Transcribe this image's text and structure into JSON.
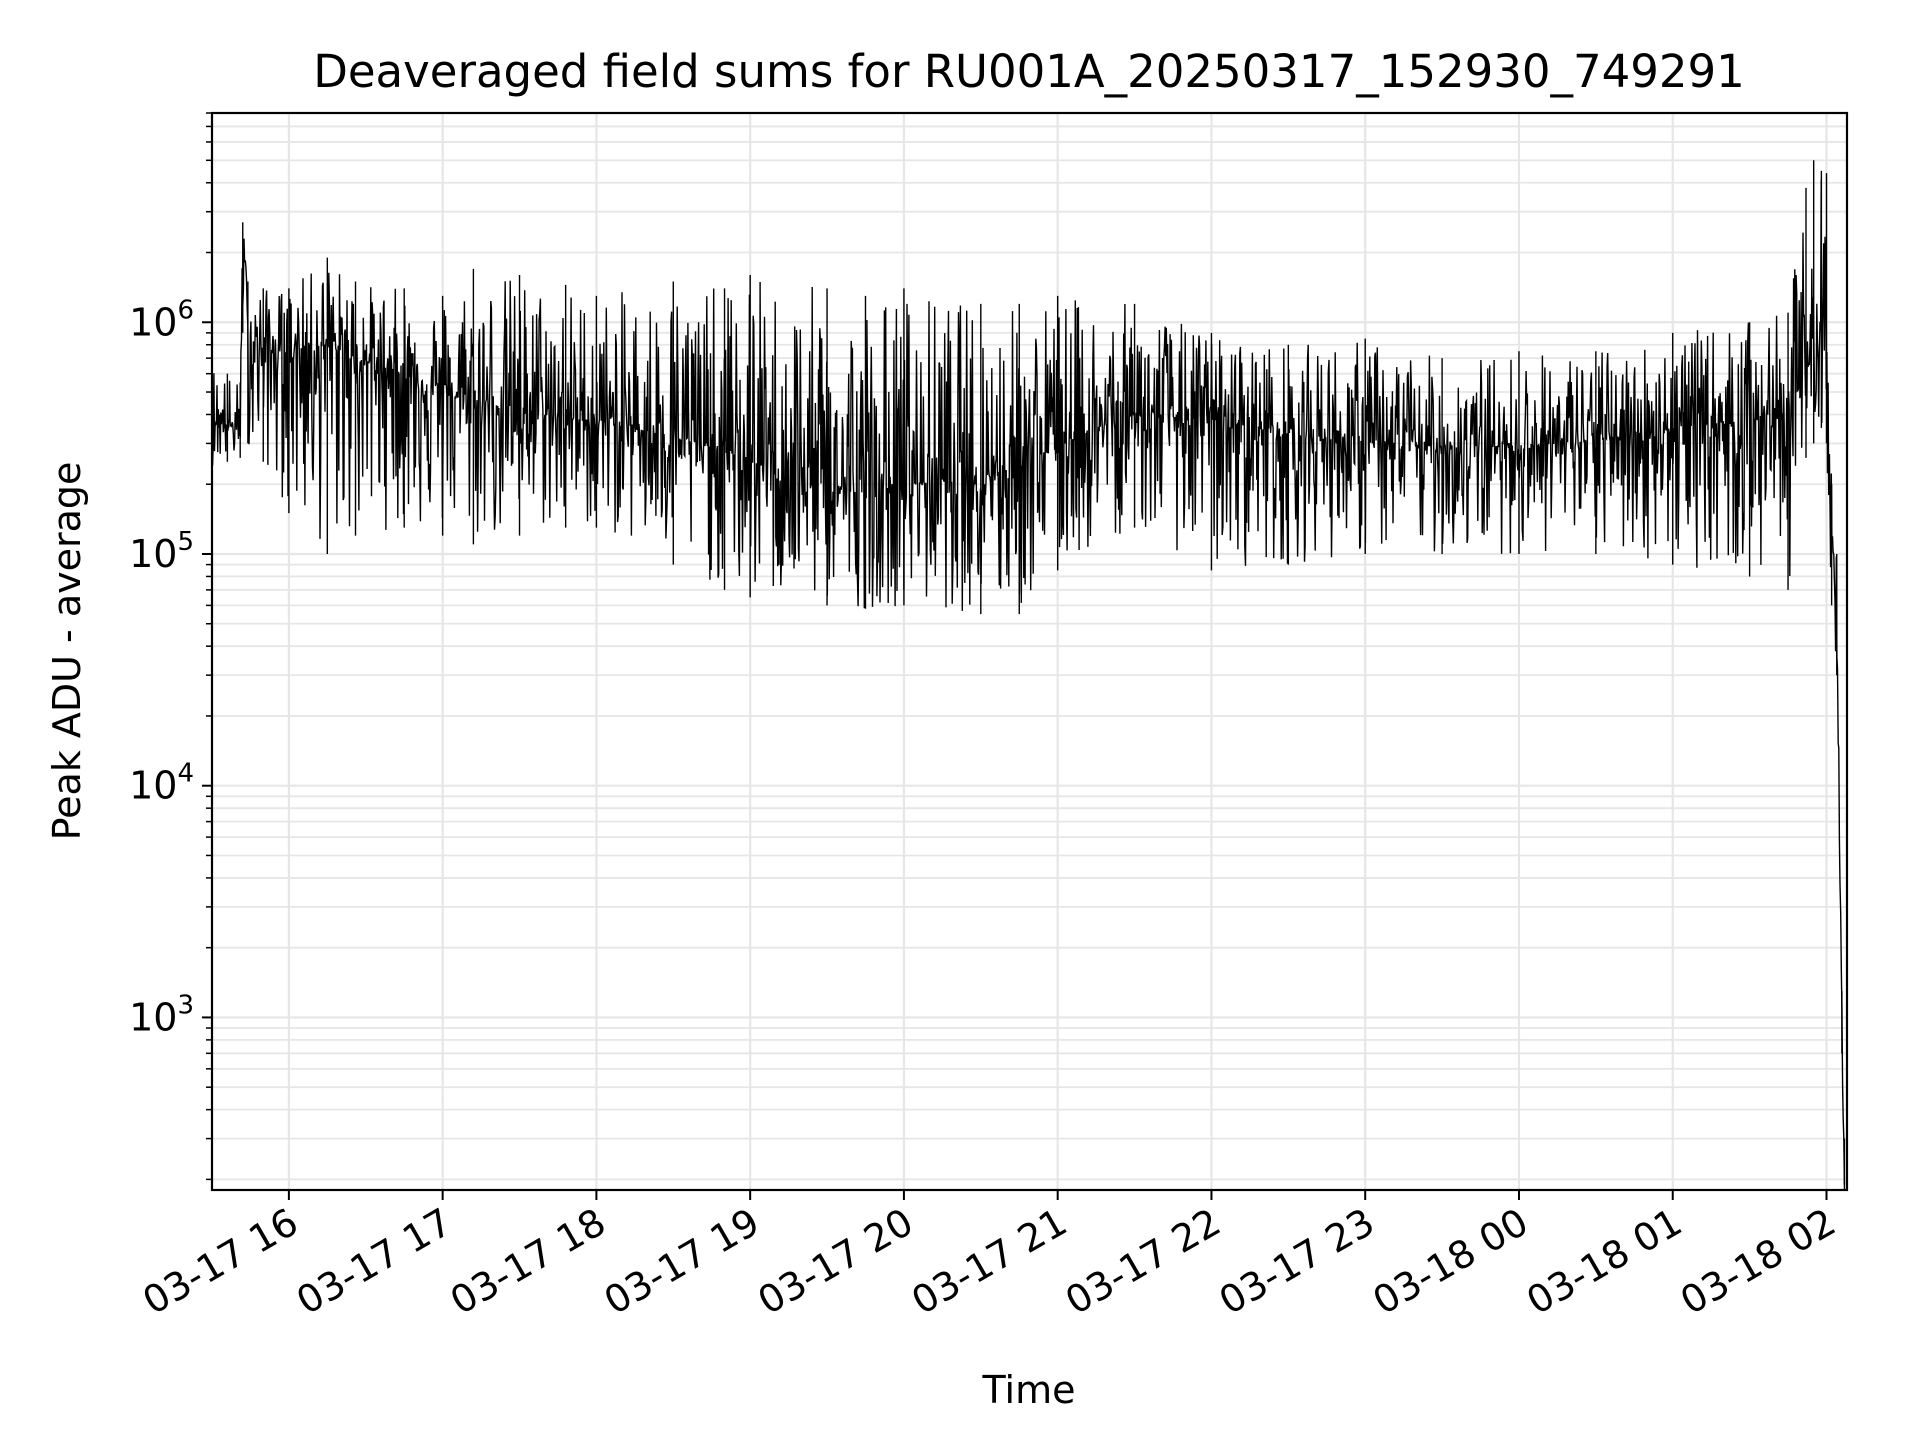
{
  "chart_data": {
    "type": "line",
    "title": "Deaveraged field sums for RU001A_20250317_152930_749291",
    "xlabel": "Time",
    "ylabel": "Peak ADU - average",
    "y_scale": "log",
    "xlim": [
      "2025-03-17 15:30",
      "2025-03-18 02:08"
    ],
    "ylim": [
      180,
      8000000
    ],
    "x_ticks": [
      {
        "t": "2025-03-17 16:00",
        "label": "03-17 16"
      },
      {
        "t": "2025-03-17 17:00",
        "label": "03-17 17"
      },
      {
        "t": "2025-03-17 18:00",
        "label": "03-17 18"
      },
      {
        "t": "2025-03-17 19:00",
        "label": "03-17 19"
      },
      {
        "t": "2025-03-17 20:00",
        "label": "03-17 20"
      },
      {
        "t": "2025-03-17 21:00",
        "label": "03-17 21"
      },
      {
        "t": "2025-03-17 22:00",
        "label": "03-17 22"
      },
      {
        "t": "2025-03-17 23:00",
        "label": "03-17 23"
      },
      {
        "t": "2025-03-18 00:00",
        "label": "03-18 00"
      },
      {
        "t": "2025-03-18 01:00",
        "label": "03-18 01"
      },
      {
        "t": "2025-03-18 02:00",
        "label": "03-18 02"
      }
    ],
    "y_ticks": [
      {
        "value": 1000,
        "base": "10",
        "exp": "3"
      },
      {
        "value": 10000,
        "base": "10",
        "exp": "4"
      },
      {
        "value": 100000,
        "base": "10",
        "exp": "5"
      },
      {
        "value": 1000000,
        "base": "10",
        "exp": "6"
      }
    ],
    "grid": true,
    "line_color": "#000000",
    "grid_color": "#e6e6e6",
    "series": [
      {
        "x": [
          "2025-03-17 15:30",
          "2025-03-17 15:36",
          "2025-03-17 15:41",
          "2025-03-17 15:42",
          "2025-03-17 15:44",
          "2025-03-17 15:50",
          "2025-03-17 16:00",
          "2025-03-17 16:15",
          "2025-03-17 16:26",
          "2025-03-17 16:45",
          "2025-03-17 17:00",
          "2025-03-17 17:12",
          "2025-03-17 17:30",
          "2025-03-17 17:48",
          "2025-03-17 18:00",
          "2025-03-17 18:30",
          "2025-03-17 18:50",
          "2025-03-17 19:00",
          "2025-03-17 19:30",
          "2025-03-17 19:45",
          "2025-03-17 20:00",
          "2025-03-17 20:30",
          "2025-03-17 20:45",
          "2025-03-17 21:00",
          "2025-03-17 21:30",
          "2025-03-17 22:00",
          "2025-03-17 22:30",
          "2025-03-17 23:00",
          "2025-03-17 23:30",
          "2025-03-18 00:00",
          "2025-03-18 00:30",
          "2025-03-18 01:00",
          "2025-03-18 01:30",
          "2025-03-18 01:45",
          "2025-03-18 01:52",
          "2025-03-18 01:55",
          "2025-03-18 01:58",
          "2025-03-18 02:00",
          "2025-03-18 02:02",
          "2025-03-18 02:04",
          "2025-03-18 02:06",
          "2025-03-18 02:07"
        ],
        "center": [
          380000,
          360000,
          350000,
          2700000,
          900000,
          750000,
          750000,
          800000,
          700000,
          600000,
          500000,
          450000,
          430000,
          380000,
          380000,
          320000,
          280000,
          250000,
          200000,
          180000,
          200000,
          220000,
          240000,
          300000,
          400000,
          380000,
          330000,
          300000,
          290000,
          290000,
          310000,
          350000,
          380000,
          420000,
          600000,
          800000,
          900000,
          800000,
          150000,
          40000,
          1000,
          200
        ],
        "high": [
          700000,
          600000,
          550000,
          2700000,
          1500000,
          1400000,
          1400000,
          1900000,
          1500000,
          1400000,
          1300000,
          1700000,
          1600000,
          1450000,
          1300000,
          1500000,
          1400000,
          1600000,
          1400000,
          1300000,
          1400000,
          1200000,
          1200000,
          1300000,
          1200000,
          900000,
          800000,
          850000,
          700000,
          750000,
          750000,
          900000,
          1000000,
          1100000,
          3800000,
          5000000,
          4500000,
          4400000,
          200000,
          100000,
          1300,
          300
        ],
        "low": [
          240000,
          250000,
          260000,
          900000,
          300000,
          250000,
          150000,
          100000,
          120000,
          130000,
          120000,
          110000,
          120000,
          130000,
          130000,
          90000,
          70000,
          65000,
          60000,
          58000,
          60000,
          55000,
          55000,
          85000,
          130000,
          85000,
          90000,
          100000,
          100000,
          100000,
          100000,
          90000,
          80000,
          70000,
          260000,
          300000,
          350000,
          300000,
          60000,
          30000,
          700,
          180
        ]
      }
    ]
  }
}
